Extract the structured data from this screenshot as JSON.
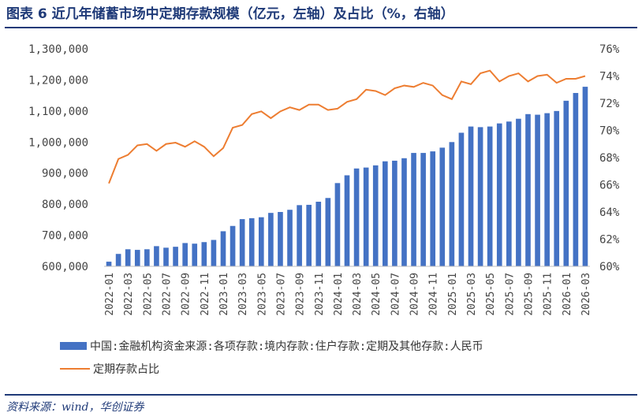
{
  "figure": {
    "title": "图表 6  近几年储蓄市场中定期存款规模（亿元，左轴）及占比（%，右轴）",
    "source": "资料来源：wind，华创证券"
  },
  "colors": {
    "bar": "#4472C4",
    "line": "#ED7D31",
    "accent": "#1f3a78"
  },
  "chart_data": {
    "type": "bar",
    "combo": "bar + line (dual axis)",
    "grid": false,
    "legend_position": "bottom",
    "x_tick_labels": [
      "2022-01",
      "2022-03",
      "2022-05",
      "2022-07",
      "2022-09",
      "2022-11",
      "2023-01",
      "2023-03",
      "2023-05",
      "2023-07",
      "2023-09",
      "2023-11",
      "2024-01",
      "2024-03",
      "2024-05",
      "2024-07",
      "2024-09",
      "2024-11",
      "2025-01",
      "2025-03",
      "2025-05",
      "2025-07",
      "2025-09",
      "2025-11",
      "2026-01",
      "2026-03"
    ],
    "categories": [
      "2022-01",
      "2022-02",
      "2022-03",
      "2022-04",
      "2022-05",
      "2022-06",
      "2022-07",
      "2022-08",
      "2022-09",
      "2022-10",
      "2022-11",
      "2022-12",
      "2023-01",
      "2023-02",
      "2023-03",
      "2023-04",
      "2023-05",
      "2023-06",
      "2023-07",
      "2023-08",
      "2023-09",
      "2023-10",
      "2023-11",
      "2023-12",
      "2024-01",
      "2024-02",
      "2024-03",
      "2024-04",
      "2024-05",
      "2024-06",
      "2024-07",
      "2024-08",
      "2024-09",
      "2024-10",
      "2024-11",
      "2024-12",
      "2025-01",
      "2025-02",
      "2025-03",
      "2025-04",
      "2025-05",
      "2025-06",
      "2025-07",
      "2025-08",
      "2025-09",
      "2025-10",
      "2025-11",
      "2025-12",
      "2026-01",
      "2026-02",
      "2026-03"
    ],
    "y_left": {
      "ylim": [
        600000,
        1300000
      ],
      "ticks": [
        "600,000",
        "700,000",
        "800,000",
        "900,000",
        "1,000,000",
        "1,100,000",
        "1,200,000",
        "1,300,000"
      ]
    },
    "y_right": {
      "ylim": [
        60,
        76
      ],
      "ticks": [
        "60%",
        "62%",
        "64%",
        "66%",
        "68%",
        "70%",
        "72%",
        "74%",
        "76%"
      ]
    },
    "series": [
      {
        "name": "中国:金融机构资金来源:各项存款:境内存款:住户存款:定期及其他存款:人民币",
        "type": "bar",
        "axis": "left",
        "values": [
          615000,
          640000,
          655000,
          653000,
          655000,
          665000,
          660000,
          663000,
          675000,
          673000,
          678000,
          685000,
          713000,
          730000,
          752000,
          755000,
          758000,
          772000,
          775000,
          782000,
          797000,
          798000,
          808000,
          820000,
          868000,
          893000,
          915000,
          918000,
          925000,
          938000,
          940000,
          948000,
          965000,
          965000,
          970000,
          982000,
          1000000,
          1030000,
          1050000,
          1048000,
          1050000,
          1060000,
          1066000,
          1075000,
          1090000,
          1088000,
          1093000,
          1100000,
          1133000,
          1158000,
          1178000
        ]
      },
      {
        "name": "定期存款占比",
        "type": "line",
        "axis": "right",
        "values": [
          66.1,
          67.9,
          68.2,
          68.9,
          69.0,
          68.5,
          69.0,
          69.1,
          68.8,
          69.2,
          68.8,
          68.1,
          68.7,
          70.2,
          70.4,
          71.2,
          71.4,
          70.9,
          71.4,
          71.7,
          71.5,
          71.9,
          71.9,
          71.5,
          71.6,
          72.1,
          72.3,
          73.0,
          72.9,
          72.6,
          73.1,
          73.3,
          73.2,
          73.5,
          73.3,
          72.6,
          72.3,
          73.6,
          73.4,
          74.2,
          74.4,
          73.6,
          74.0,
          74.2,
          73.6,
          74.0,
          74.1,
          73.5,
          73.8,
          73.8,
          74.0
        ]
      }
    ]
  }
}
